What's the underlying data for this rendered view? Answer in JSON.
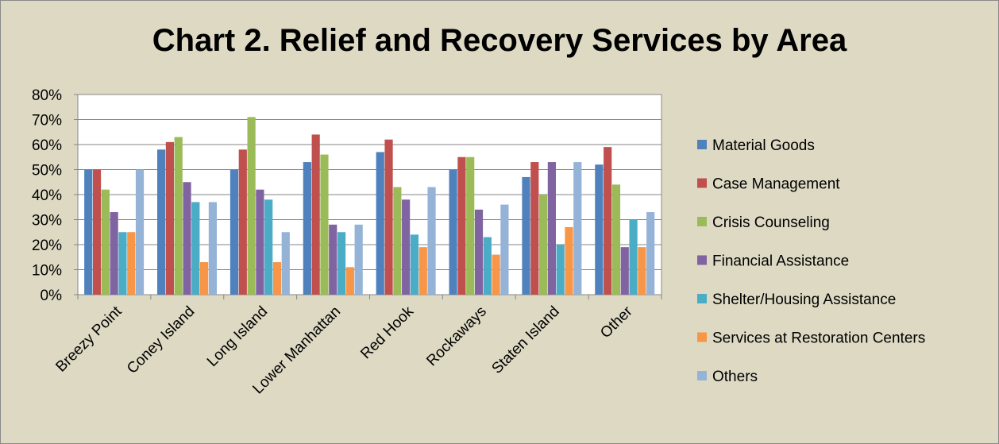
{
  "chart_data": {
    "type": "bar",
    "title": "Chart 2. Relief and Recovery Services by Area",
    "xlabel": "",
    "ylabel": "",
    "ylim": [
      0,
      80
    ],
    "yticks": [
      "0%",
      "10%",
      "20%",
      "30%",
      "40%",
      "50%",
      "60%",
      "70%",
      "80%"
    ],
    "grid": true,
    "legend_position": "right",
    "categories": [
      "Breezy Point",
      "Coney Island",
      "Long Island",
      "Lower Manhattan",
      "Red Hook",
      "Rockaways",
      "Staten Island",
      "Other"
    ],
    "series": [
      {
        "name": "Material Goods",
        "color": "#4f81bd",
        "values": [
          50,
          58,
          50,
          53,
          57,
          50,
          47,
          52
        ]
      },
      {
        "name": "Case Management",
        "color": "#c0504d",
        "values": [
          50,
          61,
          58,
          64,
          62,
          55,
          53,
          59
        ]
      },
      {
        "name": "Crisis Counseling",
        "color": "#9bbb59",
        "values": [
          42,
          63,
          71,
          56,
          43,
          55,
          40,
          44
        ]
      },
      {
        "name": "Financial Assistance",
        "color": "#8064a2",
        "values": [
          33,
          45,
          42,
          28,
          38,
          34,
          53,
          19
        ]
      },
      {
        "name": "Shelter/Housing Assistance",
        "color": "#4bacc6",
        "values": [
          25,
          37,
          38,
          25,
          24,
          23,
          20,
          30
        ]
      },
      {
        "name": "Services at Restoration Centers",
        "color": "#f79646",
        "values": [
          25,
          13,
          13,
          11,
          19,
          16,
          27,
          19
        ]
      },
      {
        "name": "Others",
        "color": "#95b3d7",
        "values": [
          50,
          37,
          25,
          28,
          43,
          36,
          53,
          33
        ]
      }
    ]
  }
}
